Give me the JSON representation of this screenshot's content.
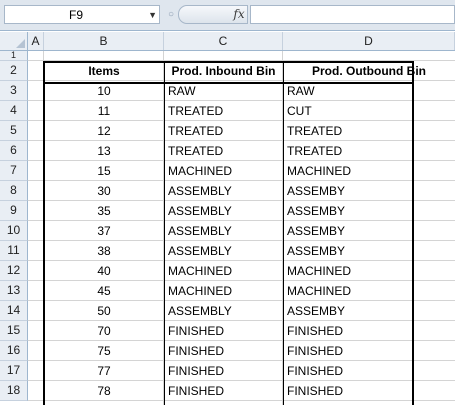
{
  "name_box": {
    "value": "F9",
    "arrow": "▼"
  },
  "formula_bar": {
    "fx_label": "fx",
    "handle": "○",
    "content": ""
  },
  "columns": [
    "A",
    "B",
    "C",
    "D"
  ],
  "rows": [
    "1",
    "2",
    "3",
    "4",
    "5",
    "6",
    "7",
    "8",
    "9",
    "10",
    "11",
    "12",
    "13",
    "14",
    "15",
    "16",
    "17",
    "18"
  ],
  "table": {
    "headers": [
      "Items",
      "Prod. Inbound Bin",
      "Prod. Outbound Bin"
    ],
    "data": [
      [
        "10",
        "RAW",
        "RAW"
      ],
      [
        "11",
        "TREATED",
        "CUT"
      ],
      [
        "12",
        "TREATED",
        "TREATED"
      ],
      [
        "13",
        "TREATED",
        "TREATED"
      ],
      [
        "15",
        "MACHINED",
        "MACHINED"
      ],
      [
        "30",
        "ASSEMBLY",
        "ASSEMBY"
      ],
      [
        "35",
        "ASSEMBLY",
        "ASSEMBY"
      ],
      [
        "37",
        "ASSEMBLY",
        "ASSEMBY"
      ],
      [
        "38",
        "ASSEMBLY",
        "ASSEMBY"
      ],
      [
        "40",
        "MACHINED",
        "MACHINED"
      ],
      [
        "45",
        "MACHINED",
        "MACHINED"
      ],
      [
        "50",
        "ASSEMBLY",
        "ASSEMBY"
      ],
      [
        "70",
        "FINISHED",
        "FINISHED"
      ],
      [
        "75",
        "FINISHED",
        "FINISHED"
      ],
      [
        "77",
        "FINISHED",
        "FINISHED"
      ],
      [
        "78",
        "FINISHED",
        "FINISHED"
      ]
    ]
  }
}
